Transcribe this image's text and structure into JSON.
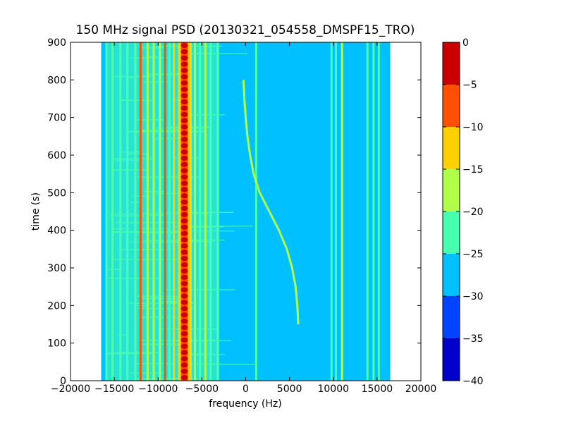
{
  "chart_data": {
    "type": "heatmap",
    "title": "150 MHz signal PSD (20130321_054558_DMSPF15_TRO)",
    "xlabel": "frequency (Hz)",
    "ylabel": "time (s)",
    "xlim": [
      -20000,
      20000
    ],
    "ylim": [
      0,
      900
    ],
    "x_ticks": [
      -20000,
      -15000,
      -10000,
      -5000,
      0,
      5000,
      10000,
      15000,
      20000
    ],
    "y_ticks": [
      0,
      100,
      200,
      300,
      400,
      500,
      600,
      700,
      800,
      900
    ],
    "grid": false,
    "spectrogram_extent_x": [
      -16500,
      16500
    ],
    "colorbar": {
      "range": [
        -40,
        0
      ],
      "ticks": [
        0,
        -5,
        -10,
        -15,
        -20,
        -25,
        -30,
        -35,
        -40
      ],
      "levels": [
        {
          "from": -40,
          "to": -35,
          "color": "#0000c8"
        },
        {
          "from": -35,
          "to": -30,
          "color": "#0044ff"
        },
        {
          "from": -30,
          "to": -25,
          "color": "#00c0ff"
        },
        {
          "from": -25,
          "to": -20,
          "color": "#48ffb0"
        },
        {
          "from": -20,
          "to": -15,
          "color": "#b0ff48"
        },
        {
          "from": -15,
          "to": -10,
          "color": "#ffd000"
        },
        {
          "from": -10,
          "to": -5,
          "color": "#ff5000"
        },
        {
          "from": -5,
          "to": 0,
          "color": "#c80000"
        }
      ]
    },
    "main_carrier": {
      "frequency": -7000,
      "time_range": [
        0,
        900
      ],
      "level": 0
    },
    "doppler_track": [
      {
        "t": 150,
        "f": 6000
      },
      {
        "t": 200,
        "f": 5900
      },
      {
        "t": 250,
        "f": 5700
      },
      {
        "t": 300,
        "f": 5300
      },
      {
        "t": 350,
        "f": 4700
      },
      {
        "t": 400,
        "f": 3800
      },
      {
        "t": 450,
        "f": 2700
      },
      {
        "t": 500,
        "f": 1600
      },
      {
        "t": 550,
        "f": 900
      },
      {
        "t": 600,
        "f": 500
      },
      {
        "t": 650,
        "f": 200
      },
      {
        "t": 700,
        "f": 0
      },
      {
        "t": 750,
        "f": -150
      },
      {
        "t": 800,
        "f": -250
      }
    ],
    "vertical_lines": [
      {
        "f": -15900,
        "level": -22
      },
      {
        "f": -15200,
        "level": -20
      },
      {
        "f": -14300,
        "level": -22
      },
      {
        "f": -13500,
        "level": -22
      },
      {
        "f": -12600,
        "level": -20
      },
      {
        "f": -12000,
        "level": -8
      },
      {
        "f": -11200,
        "level": -18
      },
      {
        "f": -10500,
        "level": -17
      },
      {
        "f": -9800,
        "level": -15
      },
      {
        "f": -9200,
        "level": -6
      },
      {
        "f": -8700,
        "level": -20
      },
      {
        "f": -8200,
        "level": -12
      },
      {
        "f": -7600,
        "level": -15
      },
      {
        "f": -6300,
        "level": -15
      },
      {
        "f": -5800,
        "level": -18
      },
      {
        "f": -5200,
        "level": -20
      },
      {
        "f": -4600,
        "level": -18
      },
      {
        "f": -4000,
        "level": -22
      },
      {
        "f": -3200,
        "level": -20
      },
      {
        "f": 1200,
        "level": -22
      },
      {
        "f": 9800,
        "level": -20
      },
      {
        "f": 10300,
        "level": -22
      },
      {
        "f": 11000,
        "level": -18
      },
      {
        "f": 13900,
        "level": -22
      },
      {
        "f": 14600,
        "level": -20
      },
      {
        "f": 15200,
        "level": -20
      }
    ]
  }
}
